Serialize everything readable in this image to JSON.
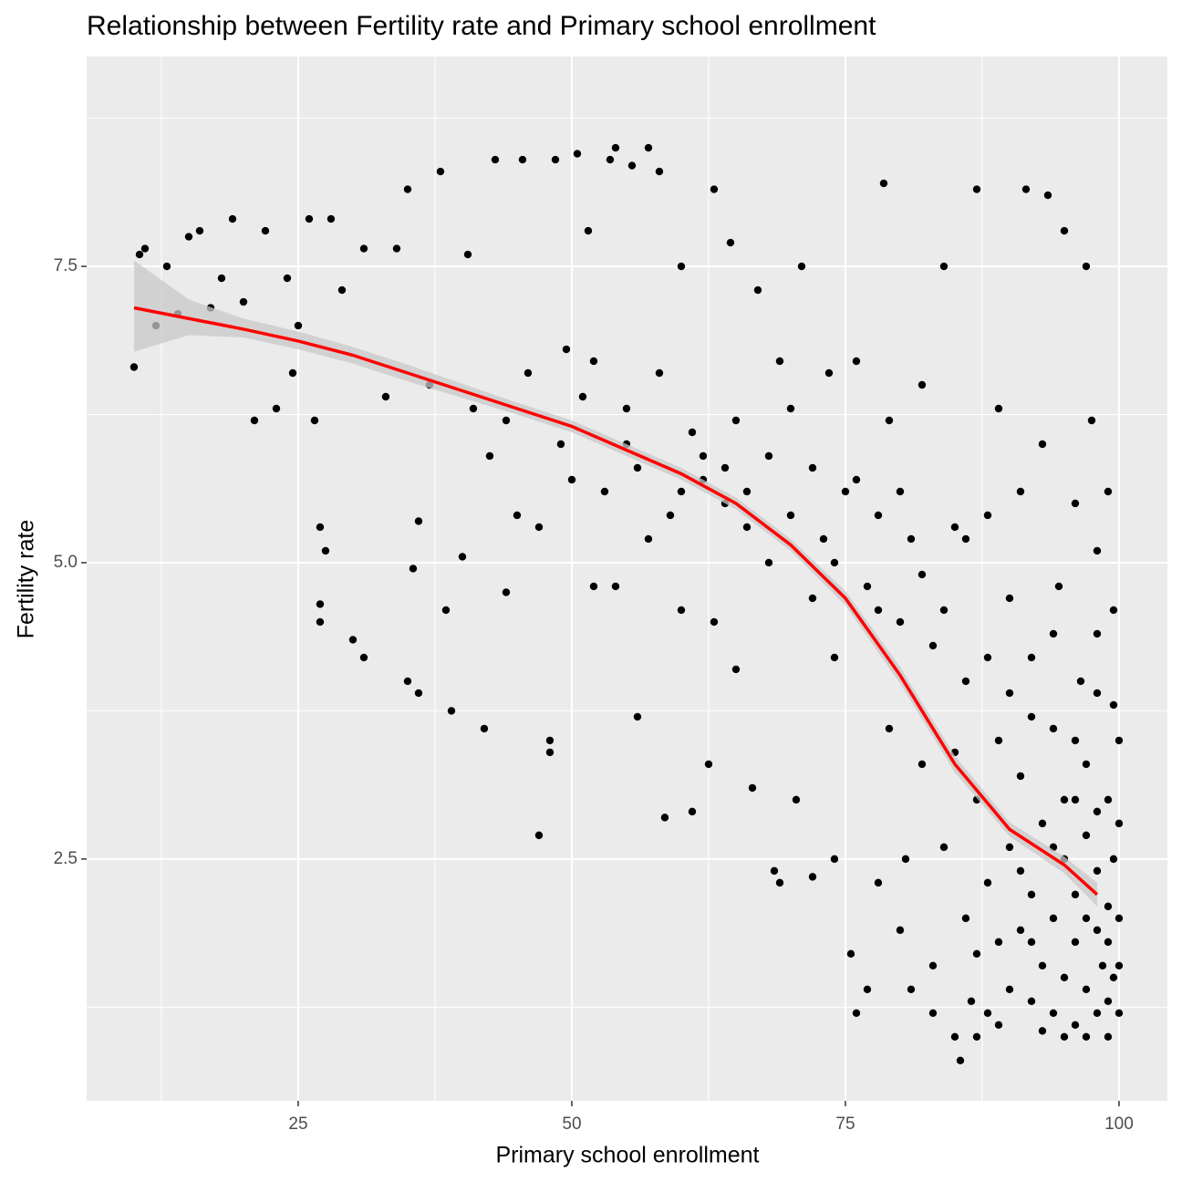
{
  "chart_data": {
    "type": "scatter",
    "title": "Relationship between Fertility rate and Primary school enrollment",
    "x_label": "Primary school enrollment",
    "y_label": "Fertility rate",
    "xlim": [
      5.67,
      104.42
    ],
    "ylim": [
      0.46,
      9.27
    ],
    "xticks": [
      25,
      50,
      75,
      100
    ],
    "yticks": [
      2.5,
      {
        "value": 5,
        "label": "5.0"
      },
      7.5
    ],
    "grid": true,
    "points": {
      "color": "#000000",
      "x": [
        10,
        10.5,
        11,
        12,
        13,
        14,
        15,
        16,
        17,
        18,
        19,
        20,
        21,
        22,
        23,
        24,
        24.5,
        25,
        26,
        26.5,
        27,
        27,
        27,
        27.5,
        28,
        29,
        30,
        31,
        31,
        33,
        34,
        35,
        35,
        35.5,
        36,
        36,
        37,
        38,
        38.5,
        39,
        40,
        40.5,
        41,
        42,
        42.5,
        43,
        44,
        44,
        45,
        45.5,
        46,
        47,
        47,
        48,
        48,
        48.5,
        49,
        49.5,
        50,
        50.5,
        51,
        51.5,
        52,
        52,
        53,
        53.5,
        54,
        54,
        55,
        55.5,
        56,
        57,
        57,
        58,
        58.5,
        58,
        59,
        60,
        60,
        61,
        61,
        62,
        62.5,
        63,
        63,
        64,
        64.5,
        65,
        65,
        66,
        66.5,
        67,
        68,
        68.5,
        69,
        69,
        70,
        70.5,
        71,
        72,
        72,
        73,
        73.5,
        74,
        74,
        75,
        75.5,
        76,
        76,
        77,
        77,
        78,
        78.5,
        78,
        79,
        79,
        80,
        80,
        80.5,
        81,
        81,
        82,
        82,
        83,
        83,
        84,
        84,
        85,
        85,
        85,
        85.5,
        86,
        86,
        86.5,
        87,
        87,
        87,
        88,
        88,
        88,
        89,
        89,
        89,
        90,
        90,
        90,
        91,
        91,
        91,
        91.5,
        92,
        92,
        92,
        93,
        93,
        93,
        93.5,
        94,
        94,
        94,
        94.5,
        95,
        95,
        95,
        95,
        96,
        96,
        96,
        96,
        96.5,
        97,
        97,
        97,
        97,
        97.5,
        98,
        98,
        98,
        98,
        98,
        98.5,
        99,
        99,
        99,
        99,
        99,
        99.5,
        99.5,
        99.5,
        99.5,
        100,
        100,
        100,
        100,
        100,
        55,
        56,
        60,
        62,
        64,
        66,
        68,
        70,
        72,
        74,
        76,
        78,
        80,
        82,
        84,
        86,
        88,
        90,
        92,
        94,
        96,
        98,
        83,
        87,
        89,
        93,
        95,
        97,
        99,
        91,
        94,
        96,
        97,
        98,
        92
      ],
      "y": [
        6.65,
        7.6,
        7.65,
        7.0,
        7.5,
        7.1,
        7.75,
        7.8,
        7.15,
        7.4,
        7.9,
        7.2,
        6.2,
        7.8,
        6.3,
        7.4,
        6.6,
        7.0,
        7.9,
        6.2,
        5.3,
        4.65,
        4.5,
        5.1,
        7.9,
        7.3,
        4.35,
        7.65,
        4.2,
        6.4,
        7.65,
        4.0,
        8.15,
        4.95,
        5.35,
        3.9,
        6.5,
        8.3,
        4.6,
        3.75,
        5.05,
        7.6,
        6.3,
        3.6,
        5.9,
        8.4,
        4.75,
        6.2,
        5.4,
        8.4,
        6.6,
        5.3,
        2.7,
        3.4,
        3.5,
        8.4,
        6.0,
        6.8,
        5.7,
        8.45,
        6.4,
        7.8,
        4.8,
        6.7,
        5.6,
        8.4,
        4.8,
        8.5,
        6.3,
        8.35,
        3.7,
        5.2,
        8.5,
        6.6,
        2.85,
        8.3,
        5.4,
        4.6,
        7.5,
        6.1,
        2.9,
        5.9,
        3.3,
        4.5,
        8.15,
        5.8,
        7.7,
        6.2,
        4.1,
        5.6,
        3.1,
        7.3,
        5.0,
        2.4,
        6.7,
        2.3,
        5.4,
        3.0,
        7.5,
        4.7,
        2.35,
        5.2,
        6.6,
        4.2,
        2.5,
        5.6,
        1.7,
        6.7,
        1.2,
        4.8,
        1.4,
        5.4,
        8.2,
        2.3,
        3.6,
        6.2,
        4.5,
        1.9,
        2.5,
        5.2,
        1.4,
        3.3,
        6.5,
        4.3,
        1.6,
        2.6,
        7.5,
        3.4,
        1.0,
        5.3,
        0.8,
        2.0,
        4.0,
        1.3,
        8.15,
        3.0,
        1.7,
        5.4,
        2.3,
        1.2,
        6.3,
        3.5,
        1.8,
        2.6,
        4.7,
        1.4,
        1.9,
        3.2,
        5.6,
        8.15,
        2.2,
        1.3,
        4.2,
        2.8,
        1.6,
        6.0,
        8.1,
        2.0,
        3.6,
        1.2,
        4.8,
        2.5,
        1.5,
        7.8,
        3.0,
        1.8,
        2.2,
        5.5,
        1.1,
        4.0,
        2.7,
        1.4,
        3.3,
        7.5,
        6.2,
        1.9,
        2.4,
        1.2,
        4.4,
        5.1,
        1.6,
        2.1,
        1.3,
        3.0,
        5.6,
        1.8,
        2.5,
        1.5,
        3.8,
        4.6,
        1.2,
        2.0,
        2.8,
        1.6,
        3.5,
        6.0,
        5.8,
        5.6,
        5.7,
        5.5,
        5.3,
        5.9,
        6.3,
        5.8,
        5.0,
        5.7,
        4.6,
        5.6,
        4.9,
        4.6,
        5.2,
        4.2,
        3.9,
        3.7,
        4.4,
        3.5,
        3.9,
        1.2,
        1.0,
        1.1,
        1.05,
        1.0,
        1.0,
        1.0,
        2.4,
        2.6,
        3.0,
        2.0,
        2.9,
        1.8
      ]
    },
    "smooth": {
      "color": "#ff0000",
      "band_color": "#c8c8c8",
      "x": [
        10,
        15,
        20,
        25,
        30,
        35,
        40,
        45,
        50,
        55,
        60,
        65,
        70,
        75,
        80,
        85,
        90,
        95,
        98
      ],
      "y": [
        7.15,
        7.06,
        6.97,
        6.87,
        6.75,
        6.6,
        6.45,
        6.3,
        6.15,
        5.95,
        5.75,
        5.5,
        5.15,
        4.7,
        4.05,
        3.3,
        2.75,
        2.45,
        2.2
      ],
      "lower": [
        6.78,
        6.92,
        6.9,
        6.8,
        6.68,
        6.53,
        6.39,
        6.25,
        6.1,
        5.9,
        5.7,
        5.45,
        5.1,
        4.64,
        3.98,
        3.23,
        2.69,
        2.38,
        2.1
      ],
      "upper": [
        7.55,
        7.22,
        7.06,
        6.95,
        6.82,
        6.67,
        6.51,
        6.35,
        6.2,
        6.0,
        5.8,
        5.55,
        5.2,
        4.76,
        4.12,
        3.37,
        2.81,
        2.52,
        2.3
      ]
    }
  }
}
